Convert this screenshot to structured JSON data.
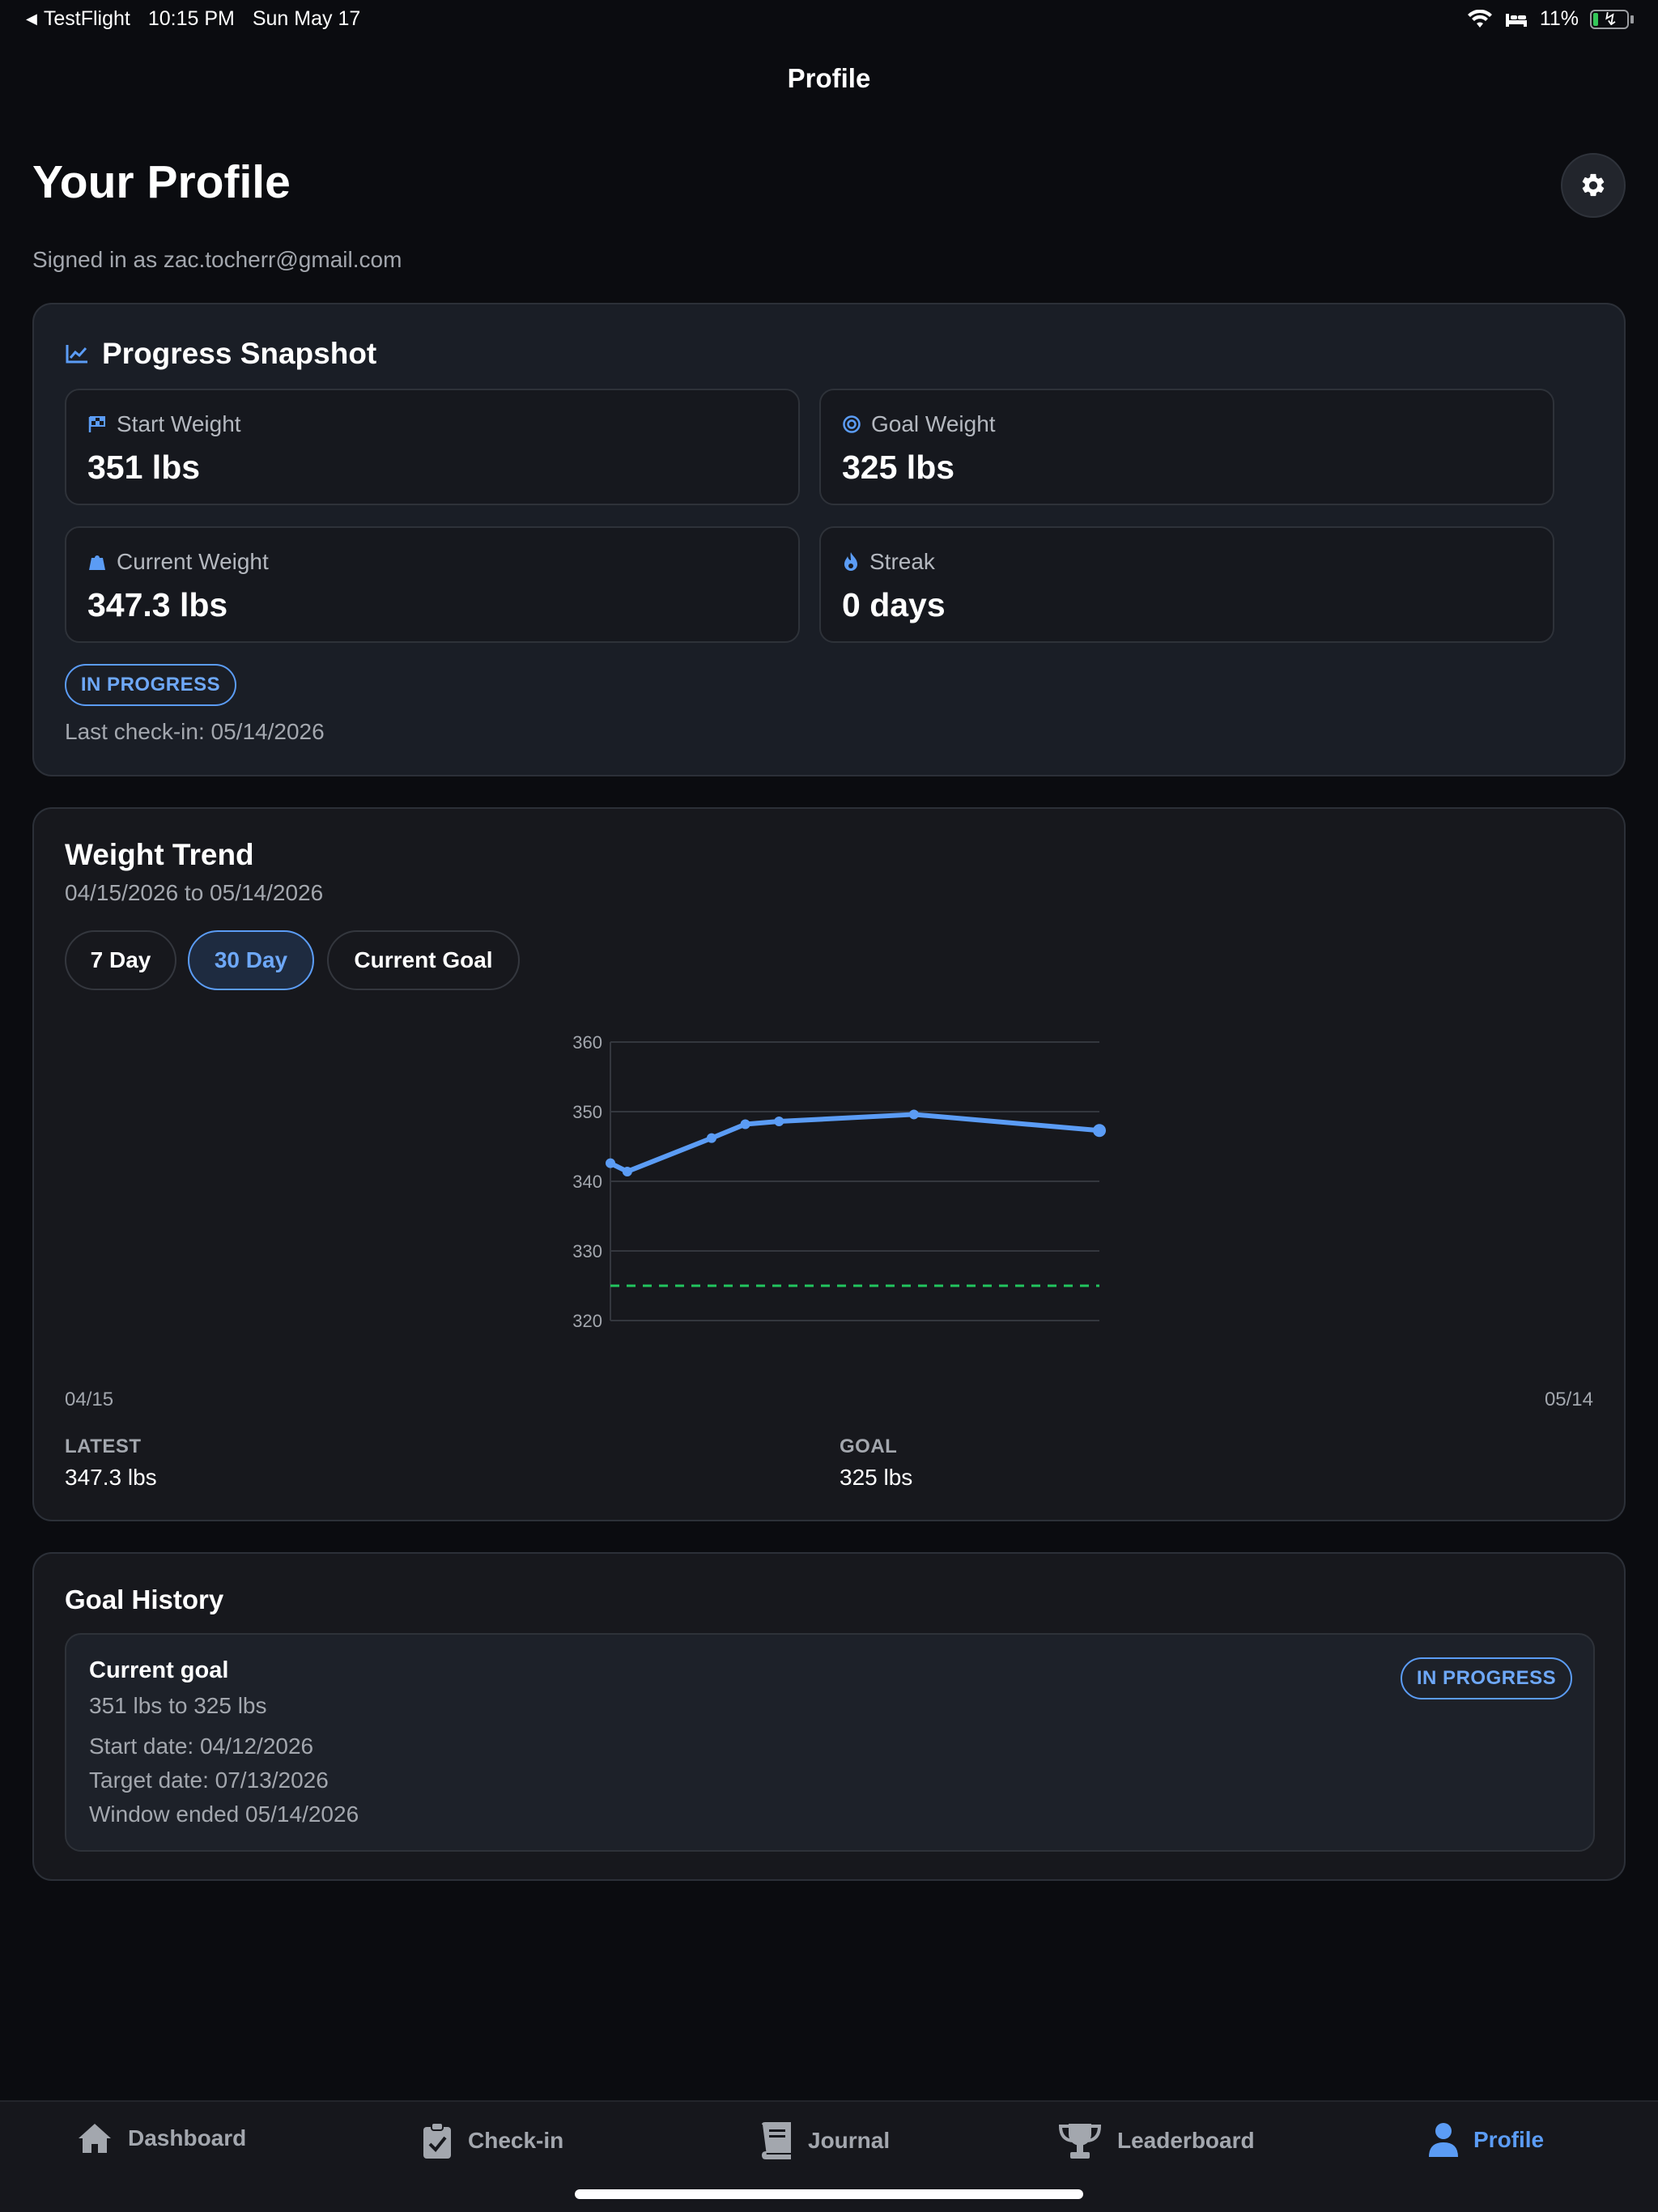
{
  "status_bar": {
    "back_app": "TestFlight",
    "time": "10:15 PM",
    "date": "Sun May 17",
    "battery": "11%"
  },
  "nav": {
    "title": "Profile"
  },
  "header": {
    "title": "Your Profile",
    "signed_in": "Signed in as zac.tocherr@gmail.com"
  },
  "snapshot": {
    "title": "Progress Snapshot",
    "start_label": "Start Weight",
    "start_value": "351 lbs",
    "goal_label": "Goal Weight",
    "goal_value": "325 lbs",
    "current_label": "Current Weight",
    "current_value": "347.3 lbs",
    "streak_label": "Streak",
    "streak_value": "0 days",
    "status": "IN PROGRESS",
    "last_checkin": "Last check-in: 05/14/2026"
  },
  "trend": {
    "title": "Weight Trend",
    "range": "04/15/2026 to 05/14/2026",
    "segments": [
      "7 Day",
      "30 Day",
      "Current Goal"
    ],
    "active_segment": "30 Day",
    "x_start": "04/15",
    "x_end": "05/14",
    "latest_label": "LATEST",
    "latest_value": "347.3 lbs",
    "goal_label": "GOAL",
    "goal_value": "325 lbs"
  },
  "chart_data": {
    "type": "line",
    "x": [
      "04/15",
      "04/16",
      "04/21",
      "04/23",
      "04/25",
      "05/03",
      "05/14"
    ],
    "values": [
      342.6,
      341.4,
      346.2,
      348.2,
      348.6,
      349.6,
      347.3
    ],
    "ylim": [
      320,
      360
    ],
    "yticks": [
      360,
      350,
      340,
      330,
      320
    ],
    "goal_line": 325,
    "grid": true,
    "line_color": "#5b9cf5",
    "goal_color": "#22c55e"
  },
  "history": {
    "title": "Goal History",
    "goal_title": "Current goal",
    "goal_range": "351 lbs to 325 lbs",
    "start_date": "Start date: 04/12/2026",
    "target_date": "Target date: 07/13/2026",
    "window": "Window ended 05/14/2026",
    "status": "IN PROGRESS"
  },
  "tabs": [
    {
      "label": "Dashboard",
      "icon": "house-icon"
    },
    {
      "label": "Check-in",
      "icon": "clipboard-check-icon"
    },
    {
      "label": "Journal",
      "icon": "book-icon"
    },
    {
      "label": "Leaderboard",
      "icon": "trophy-icon"
    },
    {
      "label": "Profile",
      "icon": "person-icon"
    }
  ],
  "active_tab": "Profile",
  "colors": {
    "accent": "#5b9cf5",
    "background": "#0b0c10",
    "goal": "#22c55e"
  }
}
